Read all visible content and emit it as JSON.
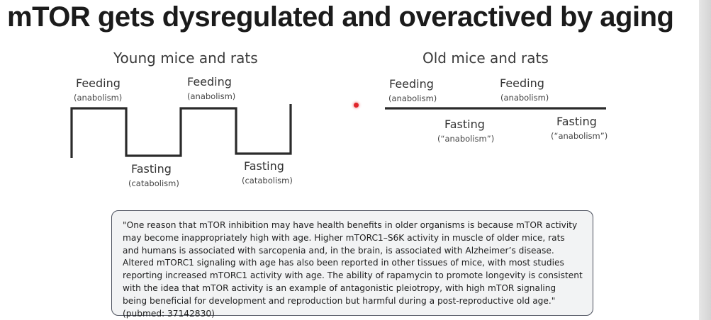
{
  "title": "mTOR gets dysregulated and overactived by aging",
  "young": {
    "heading": "Young mice and rats",
    "feeding_1": {
      "label": "Feeding",
      "sub": "(anabolism)"
    },
    "feeding_2": {
      "label": "Feeding",
      "sub": "(anabolism)"
    },
    "fasting_1": {
      "label": "Fasting",
      "sub": "(catabolism)"
    },
    "fasting_2": {
      "label": "Fasting",
      "sub": "(catabolism)"
    }
  },
  "old": {
    "heading": "Old mice and rats",
    "feeding_1": {
      "label": "Feeding",
      "sub": "(anabolism)"
    },
    "feeding_2": {
      "label": "Feeding",
      "sub": "(anabolism)"
    },
    "fasting_1": {
      "label": "Fasting",
      "sub": "(“anabolism”)"
    },
    "fasting_2": {
      "label": "Fasting",
      "sub": "(“anabolism”)"
    }
  },
  "quote": "\"One reason that mTOR inhibition may have health benefits in older organisms is because mTOR activity may become inappropriately high with age. Higher mTORC1–S6K activity in muscle of older mice, rats and humans is associated with sarcopenia and, in the brain, is associated with Alzheimer’s disease. Altered mTORC1 signaling with age has also been reported in other tissues of mice, with most studies reporting increased mTORC1 activity with age. The ability of rapamycin to promote longevity is consistent with the idea that mTOR activity is an example of antagonistic pleiotropy, with high mTOR signaling being beneficial for development and reproduction but harmful during a post-reproductive old age.\" (pubmed: 37142830)",
  "colors": {
    "line": "#2b2b2b",
    "pointer": "#e0242a",
    "box_border": "#4a4f5c"
  }
}
